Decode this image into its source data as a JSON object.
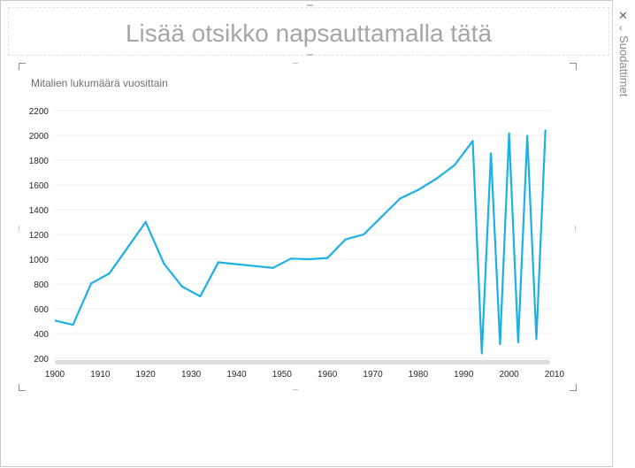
{
  "slide": {
    "title_placeholder": "Lisää otsikko napsauttamalla tätä"
  },
  "filter_pane": {
    "label": "Suodattimet",
    "close_icon": "close-icon",
    "expand_icon": "chevron-left-icon"
  },
  "chart_data": {
    "type": "line",
    "title": "Mitalien lukumäärä vuosittain",
    "xlabel": "",
    "ylabel": "",
    "xlim": [
      1900,
      2010
    ],
    "ylim": [
      200,
      2200
    ],
    "x_ticks": [
      1900,
      1910,
      1920,
      1930,
      1940,
      1950,
      1960,
      1970,
      1980,
      1990,
      2000,
      2010
    ],
    "y_ticks": [
      200,
      400,
      600,
      800,
      1000,
      1200,
      1400,
      1600,
      1800,
      2000,
      2200
    ],
    "grid": true,
    "color": "#1CB0E6",
    "x": [
      1896,
      1900,
      1904,
      1908,
      1912,
      1920,
      1924,
      1928,
      1932,
      1936,
      1948,
      1952,
      1956,
      1960,
      1964,
      1968,
      1972,
      1976,
      1980,
      1984,
      1988,
      1992,
      1994,
      1996,
      1998,
      2000,
      2002,
      2004,
      2006,
      2008
    ],
    "values": [
      535,
      505,
      470,
      805,
      885,
      1300,
      965,
      780,
      700,
      975,
      930,
      1005,
      1000,
      1010,
      1160,
      1200,
      1345,
      1490,
      1560,
      1650,
      1760,
      1955,
      240,
      1855,
      315,
      2015,
      330,
      1995,
      355,
      2040
    ]
  }
}
